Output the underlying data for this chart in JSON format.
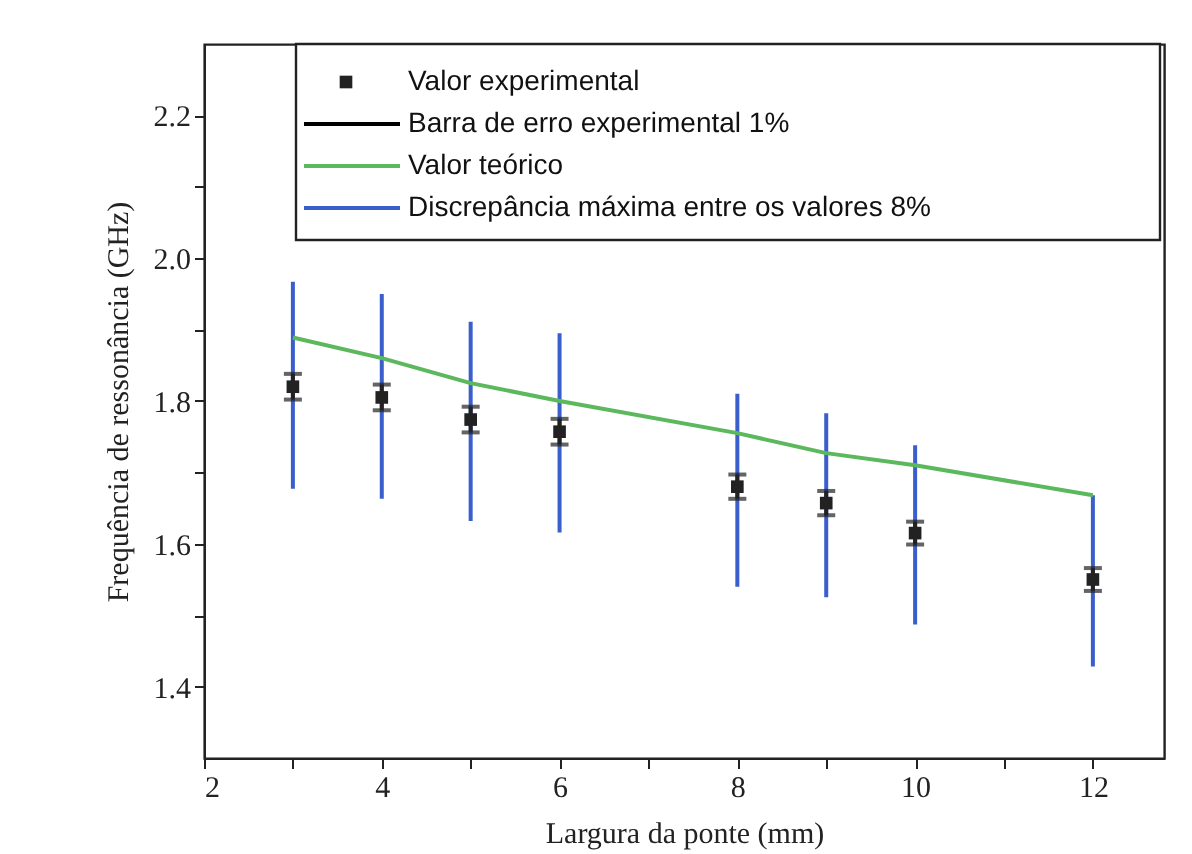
{
  "chart_data": {
    "type": "scatter",
    "xlabel": "Largura da ponte (mm)",
    "ylabel": "Frequência de ressonância (GHz)",
    "xlim": [
      2,
      12.8
    ],
    "ylim": [
      1.3,
      2.3
    ],
    "xticks": [
      2,
      {
        "value": 3,
        "label": null
      },
      4,
      {
        "value": 5,
        "label": null
      },
      6,
      {
        "value": 7,
        "label": null
      },
      8,
      {
        "value": 9,
        "label": null
      },
      10,
      {
        "value": 11,
        "label": null
      },
      12
    ],
    "yticks": [
      1.4,
      {
        "value": 1.5,
        "label": null
      },
      1.6,
      {
        "value": 1.7,
        "label": null
      },
      1.8,
      {
        "value": 1.9,
        "label": null
      },
      {
        "value": 2.0,
        "label": "2.0"
      },
      {
        "value": 2.1,
        "label": null
      },
      2.2
    ],
    "grid": false,
    "legend": "top",
    "series": [
      {
        "name": "Valor experimental",
        "marker": "square",
        "color": "#222222",
        "x": [
          3,
          4,
          5,
          6,
          8,
          9,
          10,
          12
        ],
        "values": [
          1.82,
          1.805,
          1.774,
          1.757,
          1.68,
          1.657,
          1.615,
          1.55
        ],
        "errors": [
          0.018,
          0.018,
          0.018,
          0.018,
          0.017,
          0.017,
          0.016,
          0.016
        ]
      },
      {
        "name": "Barra de erro experimental 1%",
        "marker": "none",
        "color": "#000000"
      },
      {
        "name": "Valor teórico",
        "type": "line",
        "marker": "none",
        "color": "#5cb85c",
        "x": [
          3,
          4,
          5,
          6,
          8,
          9,
          10,
          12
        ],
        "values": [
          1.889,
          1.86,
          1.825,
          1.8,
          1.755,
          1.727,
          1.71,
          1.668
        ]
      },
      {
        "name": "Discrepância máxima entre os valores 8%",
        "type": "bar",
        "marker": "none",
        "color": "#3a5fcd",
        "x": [
          3,
          4,
          5,
          6,
          8,
          9,
          10,
          12
        ],
        "base": [
          1.677,
          1.663,
          1.632,
          1.616,
          1.54,
          1.525,
          1.487,
          1.428
        ],
        "values": [
          0.29,
          0.287,
          0.279,
          0.279,
          0.27,
          0.258,
          0.251,
          0.24
        ]
      }
    ]
  }
}
